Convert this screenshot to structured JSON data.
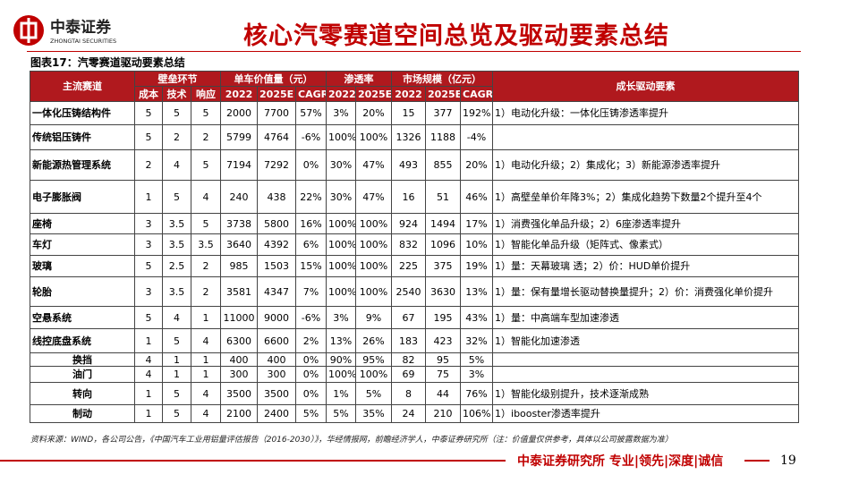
{
  "header": {
    "logo_cn": "中泰证券",
    "logo_en": "ZHONGTAI SECURITIES",
    "title": "核心汽零赛道空间总览及驱动要素总结"
  },
  "table": {
    "caption": "图表17：汽零赛道驱动要素总结",
    "head1": [
      "主流赛道",
      "壁垒环节",
      "单车价值量（元）",
      "渗透率",
      "市场规模（亿元）",
      "成长驱动要素"
    ],
    "head2": [
      "成本",
      "技术",
      "响应",
      "2022",
      "2025E",
      "CAGR",
      "2022",
      "2025E",
      "2022",
      "2025E",
      "CAGR"
    ],
    "rows": [
      [
        "一体化压铸结构件",
        "5",
        "5",
        "5",
        "2000",
        "7700",
        "57%",
        "3%",
        "20%",
        "15",
        "377",
        "192%",
        "1）电动化升级：一体化压铸渗透率提升"
      ],
      [
        "传统铝压铸件",
        "5",
        "2",
        "2",
        "5799",
        "4764",
        "-6%",
        "100%",
        "100%",
        "1326",
        "1188",
        "-4%",
        null
      ],
      [
        "新能源热管理系统",
        "2",
        "4",
        "5",
        "7194",
        "7292",
        "0%",
        "30%",
        "47%",
        "493",
        "855",
        "20%",
        "1）电动化升级；2）集成化；3）新能源渗透率提升"
      ],
      [
        "电子膨胀阀",
        "1",
        "5",
        "4",
        "240",
        "438",
        "22%",
        "30%",
        "47%",
        "16",
        "51",
        "46%",
        "1）高壁垒单价年降3%；2）集成化趋势下数量2个提升至4个"
      ],
      [
        "座椅",
        "3",
        "3.5",
        "5",
        "3738",
        "5800",
        "16%",
        "100%",
        "100%",
        "924",
        "1494",
        "17%",
        "1）消费强化单品升级；2）6座渗透率提升"
      ],
      [
        "车灯",
        "3",
        "3.5",
        "3.5",
        "3640",
        "4392",
        "6%",
        "100%",
        "100%",
        "832",
        "1096",
        "10%",
        "1）智能化单品升级（矩阵式、像素式）"
      ],
      [
        "玻璃",
        "5",
        "2.5",
        "2",
        "985",
        "1503",
        "15%",
        "100%",
        "100%",
        "225",
        "375",
        "19%",
        "1）量：天幕玻璃 透；2）价：HUD单价提升"
      ],
      [
        "轮胎",
        "3",
        "3.5",
        "2",
        "3581",
        "4347",
        "7%",
        "100%",
        "100%",
        "2540",
        "3630",
        "13%",
        "1）量：保有量增长驱动替换量提升；2）价：消费强化单价提升"
      ],
      [
        "空悬系统",
        "5",
        "4",
        "1",
        "11000",
        "9000",
        "-6%",
        "3%",
        "9%",
        "67",
        "195",
        "43%",
        "1）量：中高端车型加速渗透"
      ],
      [
        "线控底盘系统",
        "1",
        "5",
        "4",
        "6300",
        "6600",
        "2%",
        "13%",
        "26%",
        "183",
        "423",
        "32%",
        "1）智能化加速渗透"
      ],
      [
        "换挡",
        "4",
        "1",
        "1",
        "400",
        "400",
        "0%",
        "90%",
        "95%",
        "82",
        "95",
        "5%",
        null
      ],
      [
        "油门",
        "4",
        "1",
        "1",
        "300",
        "300",
        "0%",
        "100%",
        "100%",
        "69",
        "75",
        "3%",
        null
      ],
      [
        "转向",
        "1",
        "5",
        "4",
        "3500",
        "3500",
        "0%",
        "1%",
        "5%",
        "8",
        "44",
        "76%",
        "1）智能化级别提升，技术逐渐成熟"
      ],
      [
        "制动",
        "1",
        "5",
        "4",
        "2100",
        "2400",
        "5%",
        "5%",
        "35%",
        "24",
        "210",
        "106%",
        "1）ibooster渗透率提升"
      ]
    ]
  },
  "footer": {
    "source": "资料来源：WIND，各公司公告，《中国汽车工业用铝量评估报告（2016-2030）》，华经情报网，前瞻经济学人，中泰证券研究所（注：价值量仅供参考，具体以公司披露数据为准）",
    "brand": "中泰证券研究所 专业|领先|深度|诚信",
    "page": "19"
  }
}
